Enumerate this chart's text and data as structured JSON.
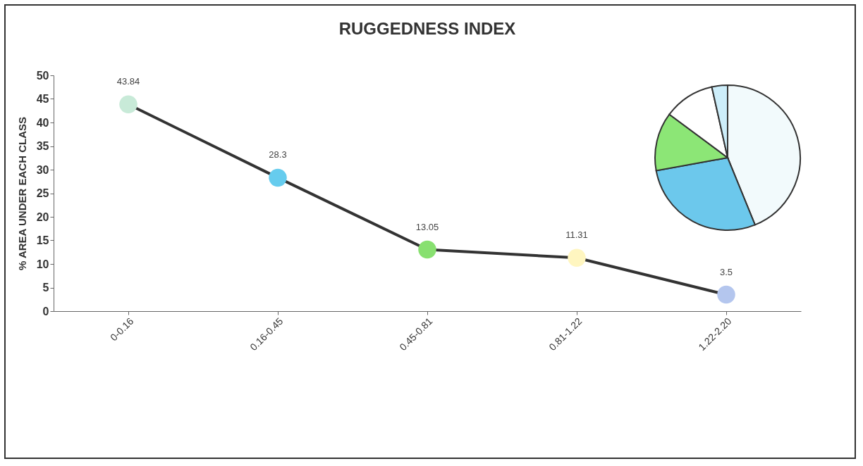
{
  "chart_data": [
    {
      "type": "line",
      "title": "RUGGEDNESS INDEX",
      "ylabel": "% AREA UNDER EACH CLASS",
      "categories": [
        "0-0.16",
        "0.16-0.45",
        "0.45-0.81",
        "0.81-1.22",
        "1.22-2.20"
      ],
      "series": [
        {
          "color": "#333333",
          "colors": [
            "#c8ead8",
            "#66ccee",
            "#88e070",
            "#fff6c0",
            "#b4c6ee"
          ],
          "values": [
            43.84,
            28.3,
            13.05,
            11.31,
            3.5
          ]
        }
      ],
      "ylim": [
        0,
        50
      ],
      "yticks": [
        0,
        5,
        10,
        15,
        20,
        25,
        30,
        35,
        40,
        45,
        50
      ],
      "marker": "circle",
      "data_labels": true
    },
    {
      "type": "pie",
      "categories": [
        null,
        null,
        null,
        null,
        null
      ],
      "values": [
        43.84,
        28.3,
        13.05,
        11.31,
        3.5
      ],
      "colors": [
        "#f2fafc",
        "#6cc8ec",
        "#8ce676",
        "#ffffff",
        "#cdeefa"
      ]
    }
  ]
}
